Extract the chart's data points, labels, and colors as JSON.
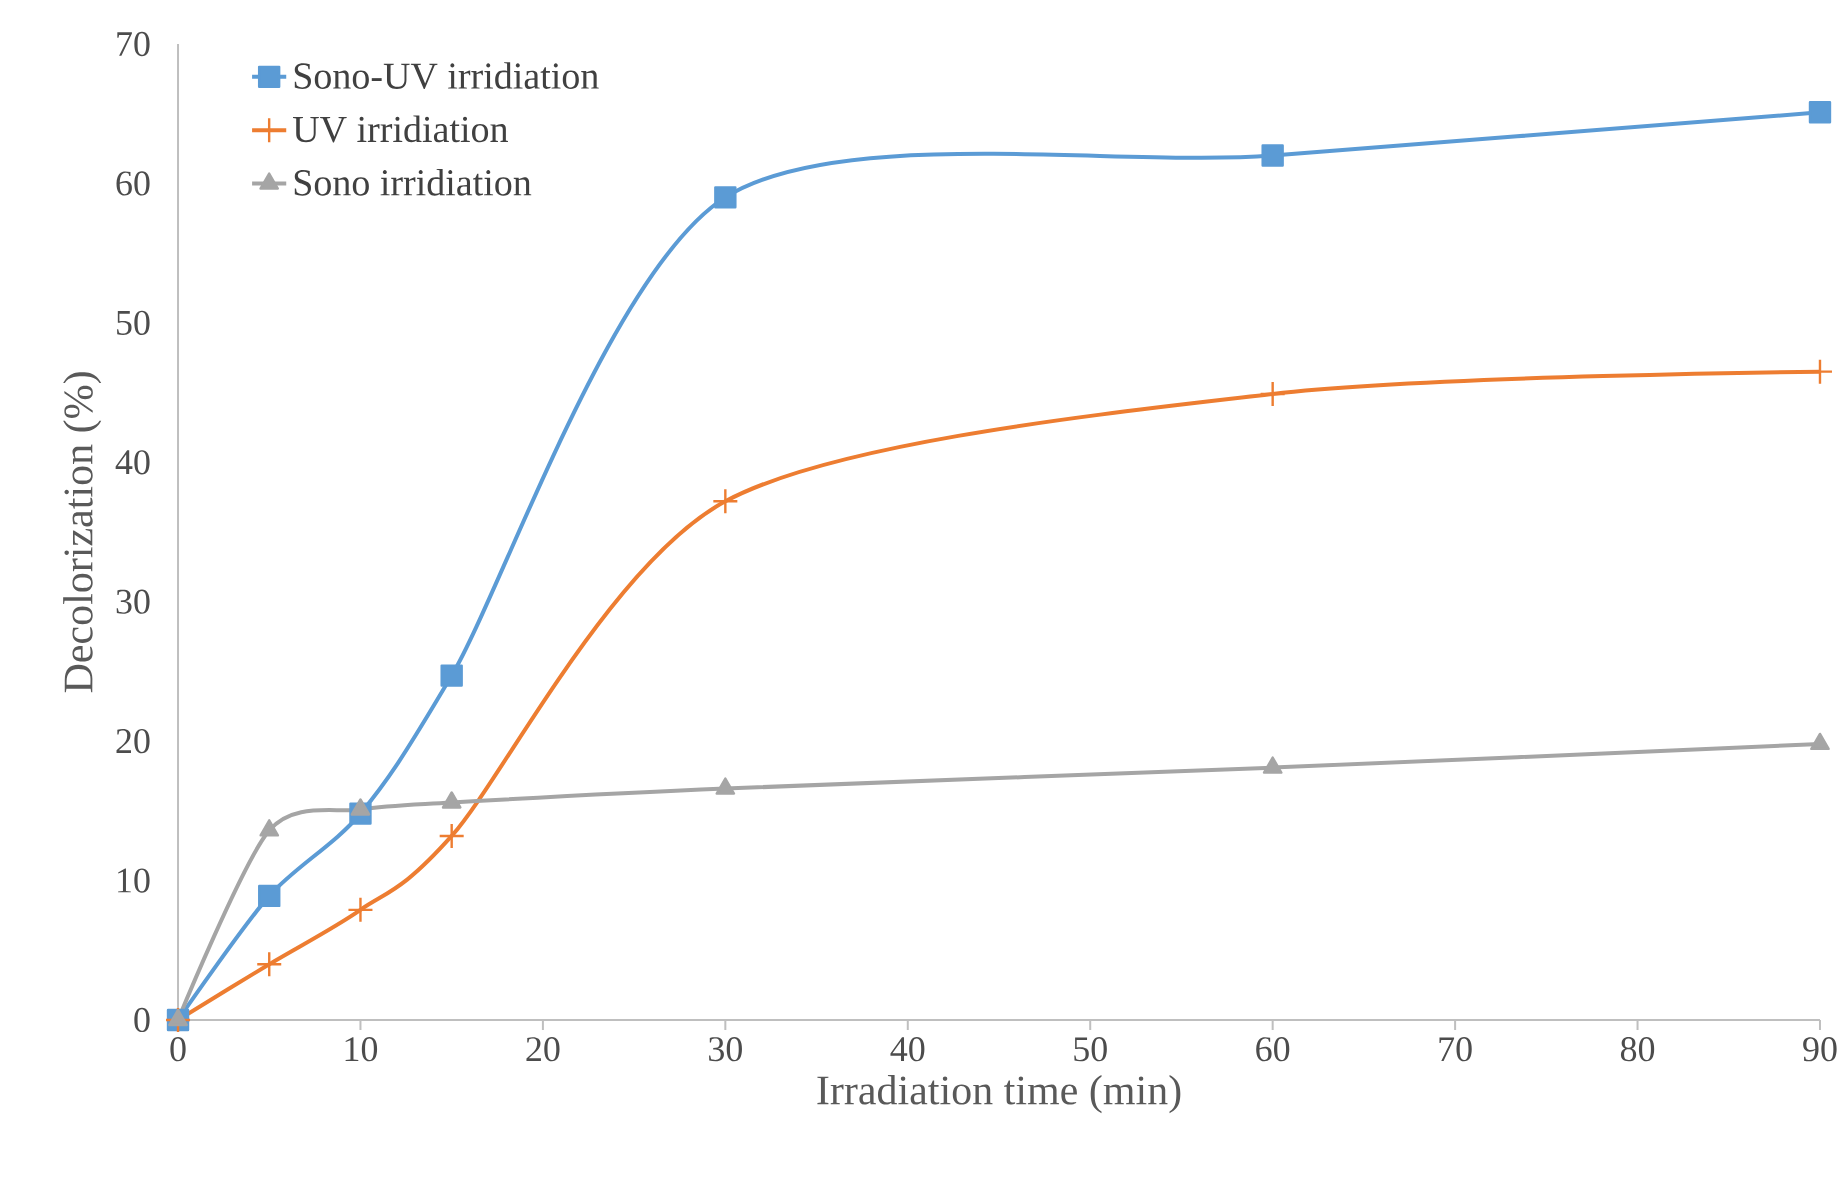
{
  "chart_data": {
    "type": "line",
    "xlabel": "Irradiation time (min)",
    "ylabel": "Decolorization (%)",
    "xlim": [
      0,
      90
    ],
    "ylim": [
      0,
      70
    ],
    "xticks": [
      0,
      10,
      20,
      30,
      40,
      50,
      60,
      70,
      80,
      90
    ],
    "yticks": [
      0,
      10,
      20,
      30,
      40,
      50,
      60,
      70
    ],
    "legend": "top left",
    "x": [
      0,
      5,
      10,
      15,
      30,
      60,
      90
    ],
    "series": [
      {
        "name": "Sono-UV irridiation",
        "color": "#5b9bd5",
        "marker": "square",
        "values": [
          0,
          8.9,
          14.8,
          24.7,
          59.0,
          62.0,
          65.1
        ]
      },
      {
        "name": "UV irridiation",
        "color": "#ed7d31",
        "marker": "cross",
        "values": [
          0,
          4.0,
          7.9,
          13.2,
          37.2,
          44.9,
          46.5
        ]
      },
      {
        "name": "Sono irridiation",
        "color": "#a5a5a5",
        "marker": "triangle",
        "values": [
          0,
          13.6,
          15.1,
          15.6,
          16.6,
          18.1,
          19.8
        ]
      }
    ]
  }
}
